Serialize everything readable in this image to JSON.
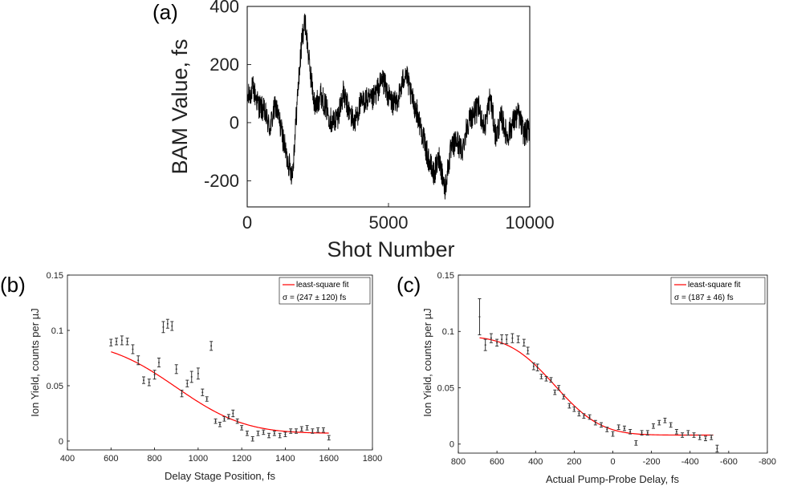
{
  "chart_data": [
    {
      "type": "line",
      "panel_label": "(a)",
      "xlabel": "Shot Number",
      "ylabel": "BAM Value, fs",
      "xlim": [
        0,
        10000
      ],
      "ylim": [
        -290,
        400
      ],
      "xticks": [
        0,
        5000,
        10000
      ],
      "xtick_labels": [
        "0",
        "5000",
        "10000"
      ],
      "yticks": [
        -200,
        0,
        200,
        400
      ],
      "ytick_labels": [
        "-200",
        "0",
        "200",
        "400"
      ],
      "series": [
        {
          "name": "BAM",
          "color": "#000000",
          "anchors_x": [
            0,
            200,
            400,
            600,
            800,
            1000,
            1200,
            1400,
            1600,
            1800,
            1950,
            2050,
            2200,
            2400,
            2600,
            2800,
            3000,
            3200,
            3400,
            3600,
            3800,
            4000,
            4200,
            4400,
            4600,
            4800,
            5000,
            5200,
            5400,
            5600,
            5800,
            6000,
            6200,
            6400,
            6600,
            6800,
            7000,
            7100,
            7200,
            7400,
            7600,
            7800,
            8000,
            8200,
            8400,
            8600,
            8800,
            9000,
            9200,
            9400,
            9600,
            9800,
            10000
          ],
          "anchors_y": [
            80,
            120,
            60,
            40,
            -20,
            60,
            -20,
            -120,
            -180,
            120,
            300,
            350,
            200,
            50,
            100,
            50,
            0,
            20,
            100,
            40,
            0,
            60,
            80,
            70,
            110,
            150,
            90,
            60,
            100,
            180,
            90,
            40,
            -40,
            -120,
            -180,
            -120,
            -230,
            -160,
            -100,
            -60,
            -100,
            0,
            30,
            50,
            -20,
            90,
            -50,
            20,
            -50,
            0,
            30,
            -40,
            -20
          ],
          "noise_amplitude_fs": 45
        }
      ]
    },
    {
      "type": "scatter",
      "panel_label": "(b)",
      "xlabel": "Delay Stage Position, fs",
      "ylabel": "Ion Yield, counts per µJ",
      "xlim": [
        400,
        1800
      ],
      "ylim": [
        -0.008,
        0.15
      ],
      "xticks": [
        400,
        600,
        800,
        1000,
        1200,
        1400,
        1600,
        1800
      ],
      "xtick_labels": [
        "400",
        "600",
        "800",
        "1000",
        "1200",
        "1400",
        "1600",
        "1800"
      ],
      "yticks": [
        0,
        0.05,
        0.1,
        0.15
      ],
      "ytick_labels": [
        "0",
        "0.05",
        "0.1",
        "0.15"
      ],
      "legend": {
        "entry": "least-square fit",
        "sigma_text": "σ = (247 ± 120) fs",
        "placement": "top-right"
      },
      "fit": {
        "color": "#ff0000",
        "center": 900,
        "sigma": 247,
        "y_high": 0.09,
        "y_low": 0.007,
        "x_start": 600,
        "x_end": 1600
      },
      "points": {
        "x": [
          600,
          625,
          650,
          675,
          700,
          725,
          750,
          775,
          800,
          820,
          840,
          860,
          880,
          900,
          925,
          950,
          970,
          1000,
          1020,
          1040,
          1060,
          1080,
          1100,
          1120,
          1140,
          1160,
          1180,
          1200,
          1225,
          1250,
          1275,
          1300,
          1325,
          1350,
          1375,
          1400,
          1425,
          1450,
          1475,
          1500,
          1525,
          1550,
          1575,
          1600
        ],
        "y": [
          0.089,
          0.09,
          0.091,
          0.09,
          0.083,
          0.073,
          0.055,
          0.053,
          0.06,
          0.071,
          0.103,
          0.106,
          0.104,
          0.065,
          0.043,
          0.052,
          0.058,
          0.061,
          0.044,
          0.038,
          0.086,
          0.018,
          0.015,
          0.02,
          0.022,
          0.025,
          0.018,
          0.012,
          0.007,
          0.002,
          0.007,
          0.008,
          0.005,
          0.007,
          0.005,
          0.006,
          0.009,
          0.009,
          0.011,
          0.012,
          0.009,
          0.01,
          0.01,
          0.003
        ],
        "err": [
          0.003,
          0.003,
          0.004,
          0.003,
          0.004,
          0.004,
          0.003,
          0.003,
          0.004,
          0.004,
          0.005,
          0.004,
          0.004,
          0.004,
          0.003,
          0.003,
          0.005,
          0.005,
          0.003,
          0.002,
          0.004,
          0.002,
          0.002,
          0.002,
          0.002,
          0.003,
          0.002,
          0.002,
          0.002,
          0.002,
          0.002,
          0.002,
          0.002,
          0.002,
          0.002,
          0.002,
          0.002,
          0.002,
          0.002,
          0.002,
          0.002,
          0.002,
          0.002,
          0.002
        ]
      }
    },
    {
      "type": "scatter",
      "panel_label": "(c)",
      "xlabel": "Actual Pump-Probe Delay, fs",
      "ylabel": "Ion Yield, counts per µJ",
      "xlim": [
        800,
        -800
      ],
      "ylim": [
        -0.008,
        0.15
      ],
      "xticks": [
        800,
        600,
        400,
        200,
        0,
        -200,
        -400,
        -600,
        -800
      ],
      "xtick_labels": [
        "800",
        "600",
        "400",
        "200",
        "0",
        "-200",
        "-400",
        "-600",
        "-800"
      ],
      "yticks": [
        0,
        0.05,
        0.1,
        0.15
      ],
      "ytick_labels": [
        "0",
        "0.05",
        "0.1",
        "0.15"
      ],
      "legend": {
        "entry": "least-square fit",
        "sigma_text": "σ = (187 ± 46) fs",
        "placement": "top-right"
      },
      "fit": {
        "color": "#ff0000",
        "center": 300,
        "sigma": 187,
        "y_high": 0.096,
        "y_low": 0.008,
        "x_start": 690,
        "x_end": -520
      },
      "points": {
        "x": [
          690,
          660,
          630,
          600,
          575,
          550,
          520,
          490,
          460,
          440,
          410,
          390,
          370,
          345,
          320,
          300,
          280,
          255,
          225,
          200,
          175,
          150,
          120,
          90,
          60,
          30,
          0,
          -30,
          -60,
          -90,
          -120,
          -150,
          -180,
          -210,
          -240,
          -270,
          -300,
          -330,
          -360,
          -390,
          -420,
          -450,
          -480,
          -510,
          -540
        ],
        "y": [
          0.113,
          0.088,
          0.094,
          0.09,
          0.093,
          0.093,
          0.094,
          0.093,
          0.09,
          0.083,
          0.069,
          0.068,
          0.06,
          0.058,
          0.057,
          0.046,
          0.05,
          0.042,
          0.034,
          0.031,
          0.027,
          0.025,
          0.024,
          0.019,
          0.017,
          0.013,
          0.009,
          0.015,
          0.014,
          0.011,
          0.001,
          0.01,
          0.01,
          0.016,
          0.019,
          0.021,
          0.017,
          0.011,
          0.008,
          0.01,
          0.008,
          0.006,
          0.005,
          0.006,
          -0.004
        ],
        "err": [
          0.016,
          0.005,
          0.004,
          0.003,
          0.004,
          0.004,
          0.004,
          0.003,
          0.003,
          0.003,
          0.003,
          0.003,
          0.002,
          0.002,
          0.002,
          0.002,
          0.002,
          0.002,
          0.002,
          0.002,
          0.002,
          0.002,
          0.002,
          0.002,
          0.002,
          0.002,
          0.002,
          0.002,
          0.002,
          0.002,
          0.002,
          0.002,
          0.002,
          0.002,
          0.002,
          0.002,
          0.002,
          0.002,
          0.002,
          0.002,
          0.002,
          0.002,
          0.002,
          0.002,
          0.003
        ]
      }
    }
  ]
}
